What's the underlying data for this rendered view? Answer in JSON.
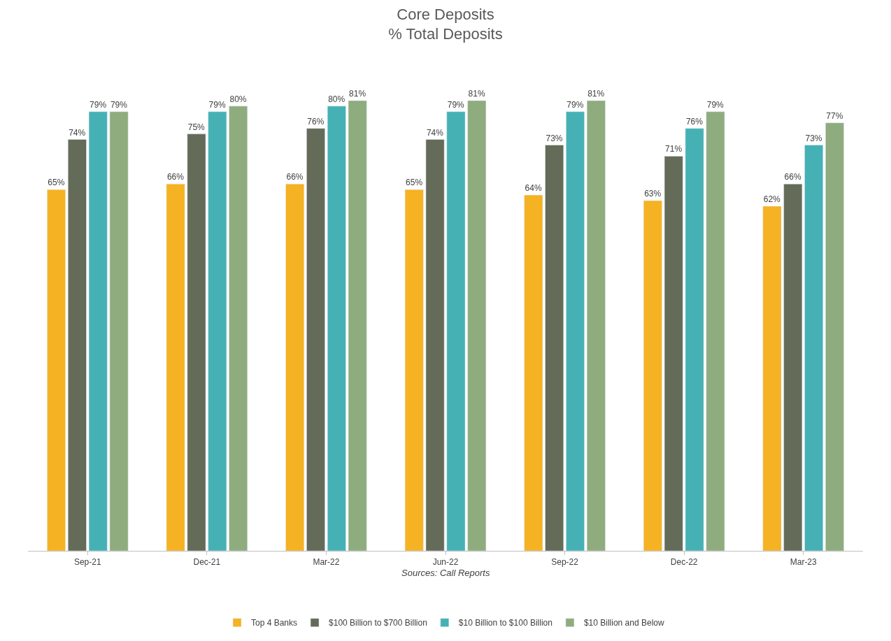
{
  "chart_data": {
    "type": "bar",
    "title": "Core Deposits\n% Total Deposits",
    "categories": [
      "Sep-21",
      "Dec-21",
      "Mar-22",
      "Jun-22",
      "Sep-22",
      "Dec-22",
      "Mar-23"
    ],
    "series": [
      {
        "name": "Top 4 Banks",
        "color": "#f5b223",
        "values": [
          65,
          66,
          66,
          65,
          64,
          63,
          62
        ],
        "value_labels": [
          "65%",
          "66%",
          "66%",
          "65%",
          "64%",
          "63%",
          "62%"
        ]
      },
      {
        "name": "$100 Billion to $700 Billion",
        "color": "#646b58",
        "values": [
          74,
          75,
          76,
          74,
          73,
          71,
          66
        ],
        "value_labels": [
          "74%",
          "75%",
          "76%",
          "74%",
          "73%",
          "71%",
          "66%"
        ]
      },
      {
        "name": "$10 Billion to $100 Billion",
        "color": "#46b1b5",
        "values": [
          79,
          79,
          80,
          79,
          79,
          76,
          73
        ],
        "value_labels": [
          "79%",
          "79%",
          "80%",
          "79%",
          "79%",
          "76%",
          "73%"
        ]
      },
      {
        "name": "$10 Billion and Below",
        "color": "#8fac7f",
        "values": [
          79,
          80,
          81,
          81,
          81,
          79,
          77
        ],
        "value_labels": [
          "79%",
          "80%",
          "81%",
          "81%",
          "81%",
          "79%",
          "77%"
        ]
      }
    ],
    "annotations": [
      "Sources: Call Reports"
    ],
    "tick_labels": "x",
    "legend": "bottom"
  }
}
